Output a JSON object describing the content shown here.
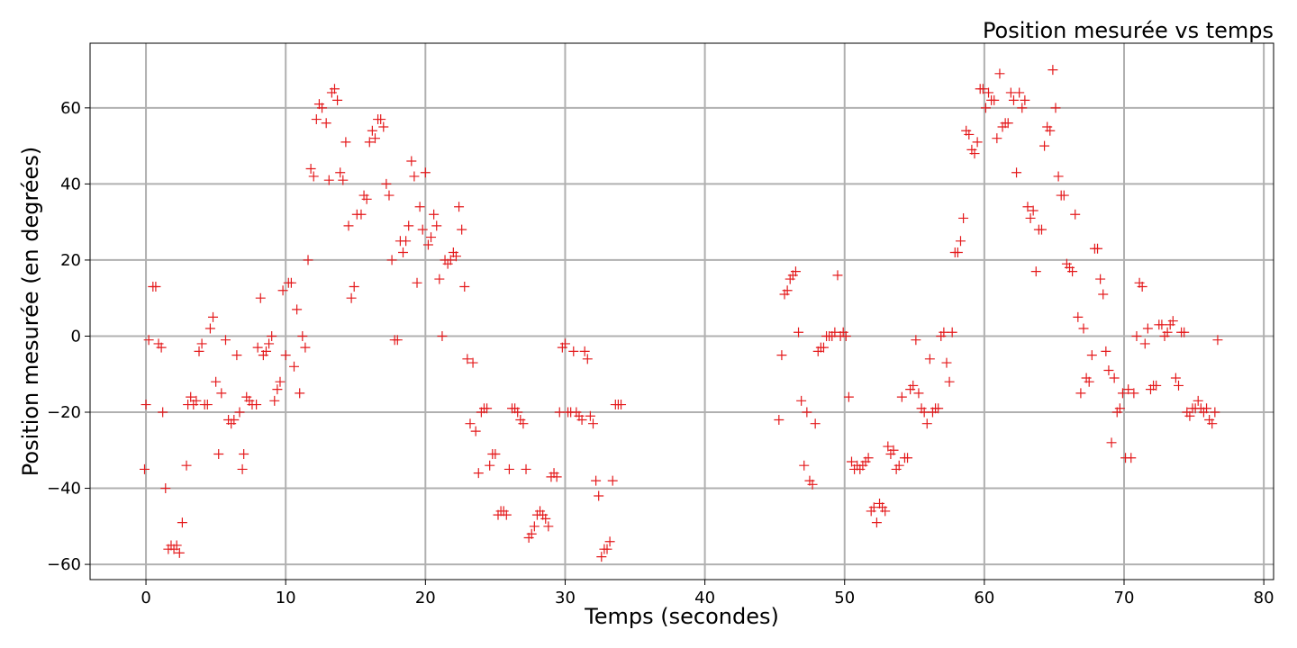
{
  "chart_data": {
    "type": "scatter",
    "title": "Position mesurée vs temps",
    "xlabel": "Temps (secondes)",
    "ylabel": "Position mesurée (en degrées)",
    "xlim": [
      -4,
      80.7
    ],
    "ylim": [
      -64,
      77
    ],
    "xticks": [
      0,
      10,
      20,
      30,
      40,
      50,
      60,
      70,
      80
    ],
    "yticks": [
      -60,
      -40,
      -20,
      0,
      20,
      40,
      60
    ],
    "grid": true,
    "marker": "+",
    "color": "#e41a1c",
    "series": [
      {
        "points": [
          [
            -0.1,
            -35
          ],
          [
            0.0,
            -18
          ],
          [
            0.2,
            -1
          ],
          [
            0.5,
            13
          ],
          [
            0.7,
            13
          ],
          [
            0.9,
            -2
          ],
          [
            1.1,
            -3
          ],
          [
            1.2,
            -20
          ],
          [
            1.4,
            -40
          ],
          [
            1.6,
            -56
          ],
          [
            1.8,
            -55
          ],
          [
            2.0,
            -56
          ],
          [
            2.2,
            -55
          ],
          [
            2.4,
            -57
          ],
          [
            2.6,
            -49
          ],
          [
            2.9,
            -34
          ],
          [
            3.0,
            -18
          ],
          [
            3.2,
            -16
          ],
          [
            3.4,
            -18
          ],
          [
            3.6,
            -17
          ],
          [
            3.8,
            -4
          ],
          [
            4.0,
            -2
          ],
          [
            4.2,
            -18
          ],
          [
            4.4,
            -18
          ],
          [
            4.6,
            2
          ],
          [
            4.8,
            5
          ],
          [
            5.0,
            -12
          ],
          [
            5.2,
            -31
          ],
          [
            5.4,
            -15
          ],
          [
            5.7,
            -1
          ],
          [
            5.9,
            -22
          ],
          [
            6.1,
            -23
          ],
          [
            6.3,
            -22
          ],
          [
            6.5,
            -5
          ],
          [
            6.7,
            -20
          ],
          [
            6.9,
            -35
          ],
          [
            7.0,
            -31
          ],
          [
            7.2,
            -16
          ],
          [
            7.4,
            -17
          ],
          [
            7.6,
            -18
          ],
          [
            7.9,
            -18
          ],
          [
            8.0,
            -3
          ],
          [
            8.2,
            10
          ],
          [
            8.4,
            -5
          ],
          [
            8.6,
            -4
          ],
          [
            8.8,
            -2
          ],
          [
            9.0,
            0
          ],
          [
            9.2,
            -17
          ],
          [
            9.4,
            -14
          ],
          [
            9.6,
            -12
          ],
          [
            9.8,
            12
          ],
          [
            10.0,
            -5
          ],
          [
            10.2,
            14
          ],
          [
            10.4,
            14
          ],
          [
            10.6,
            -8
          ],
          [
            10.8,
            7
          ],
          [
            11.0,
            -15
          ],
          [
            11.2,
            0
          ],
          [
            11.4,
            -3
          ],
          [
            11.6,
            20
          ],
          [
            11.8,
            44
          ],
          [
            12.0,
            42
          ],
          [
            12.2,
            57
          ],
          [
            12.4,
            61
          ],
          [
            12.6,
            60
          ],
          [
            12.9,
            56
          ],
          [
            13.1,
            41
          ],
          [
            13.3,
            64
          ],
          [
            13.5,
            65
          ],
          [
            13.7,
            62
          ],
          [
            13.9,
            43
          ],
          [
            14.1,
            41
          ],
          [
            14.3,
            51
          ],
          [
            14.5,
            29
          ],
          [
            14.7,
            10
          ],
          [
            14.9,
            13
          ],
          [
            15.1,
            32
          ],
          [
            15.4,
            32
          ],
          [
            15.6,
            37
          ],
          [
            15.8,
            36
          ],
          [
            16.0,
            51
          ],
          [
            16.2,
            54
          ],
          [
            16.4,
            52
          ],
          [
            16.6,
            57
          ],
          [
            16.8,
            57
          ],
          [
            17.0,
            55
          ],
          [
            17.2,
            40
          ],
          [
            17.4,
            37
          ],
          [
            17.6,
            20
          ],
          [
            17.8,
            -1
          ],
          [
            18.0,
            -1
          ],
          [
            18.2,
            25
          ],
          [
            18.4,
            22
          ],
          [
            18.6,
            25
          ],
          [
            18.8,
            29
          ],
          [
            19.0,
            46
          ],
          [
            19.2,
            42
          ],
          [
            19.4,
            14
          ],
          [
            19.6,
            34
          ],
          [
            19.8,
            28
          ],
          [
            20.0,
            43
          ],
          [
            20.2,
            24
          ],
          [
            20.4,
            26
          ],
          [
            20.6,
            32
          ],
          [
            20.8,
            29
          ],
          [
            21.0,
            15
          ],
          [
            21.2,
            0
          ],
          [
            21.4,
            20
          ],
          [
            21.6,
            19
          ],
          [
            21.8,
            20
          ],
          [
            22.0,
            22
          ],
          [
            22.2,
            21
          ],
          [
            22.4,
            34
          ],
          [
            22.6,
            28
          ],
          [
            22.8,
            13
          ],
          [
            23.0,
            -6
          ],
          [
            23.2,
            -23
          ],
          [
            23.4,
            -7
          ],
          [
            23.6,
            -25
          ],
          [
            23.8,
            -36
          ],
          [
            24.0,
            -20
          ],
          [
            24.2,
            -19
          ],
          [
            24.4,
            -19
          ],
          [
            24.6,
            -34
          ],
          [
            24.8,
            -31
          ],
          [
            25.0,
            -31
          ],
          [
            25.2,
            -47
          ],
          [
            25.4,
            -46
          ],
          [
            25.6,
            -46
          ],
          [
            25.8,
            -47
          ],
          [
            26.0,
            -35
          ],
          [
            26.2,
            -19
          ],
          [
            26.4,
            -19
          ],
          [
            26.6,
            -20
          ],
          [
            26.8,
            -22
          ],
          [
            27.0,
            -23
          ],
          [
            27.2,
            -35
          ],
          [
            27.4,
            -53
          ],
          [
            27.6,
            -52
          ],
          [
            27.8,
            -50
          ],
          [
            28.0,
            -47
          ],
          [
            28.2,
            -46
          ],
          [
            28.4,
            -47
          ],
          [
            28.6,
            -48
          ],
          [
            28.8,
            -50
          ],
          [
            29.0,
            -37
          ],
          [
            29.2,
            -36
          ],
          [
            29.4,
            -37
          ],
          [
            29.6,
            -20
          ],
          [
            29.8,
            -3
          ],
          [
            30.0,
            -2
          ],
          [
            30.2,
            -20
          ],
          [
            30.4,
            -20
          ],
          [
            30.6,
            -4
          ],
          [
            30.8,
            -20
          ],
          [
            31.0,
            -21
          ],
          [
            31.2,
            -22
          ],
          [
            31.4,
            -4
          ],
          [
            31.6,
            -6
          ],
          [
            31.8,
            -21
          ],
          [
            32.0,
            -23
          ],
          [
            32.2,
            -38
          ],
          [
            32.4,
            -42
          ],
          [
            32.6,
            -58
          ],
          [
            32.8,
            -56
          ],
          [
            33.0,
            -56
          ],
          [
            33.2,
            -54
          ],
          [
            33.4,
            -38
          ],
          [
            33.6,
            -18
          ],
          [
            33.8,
            -18
          ],
          [
            34.0,
            -18
          ],
          [
            45.3,
            -22
          ],
          [
            45.5,
            -5
          ],
          [
            45.7,
            11
          ],
          [
            45.9,
            12
          ],
          [
            46.1,
            15
          ],
          [
            46.3,
            16
          ],
          [
            46.5,
            17
          ],
          [
            46.7,
            1
          ],
          [
            46.9,
            -17
          ],
          [
            47.1,
            -34
          ],
          [
            47.3,
            -20
          ],
          [
            47.5,
            -38
          ],
          [
            47.7,
            -39
          ],
          [
            47.9,
            -23
          ],
          [
            48.1,
            -4
          ],
          [
            48.3,
            -3
          ],
          [
            48.5,
            -3
          ],
          [
            48.7,
            0
          ],
          [
            48.9,
            0
          ],
          [
            49.1,
            0
          ],
          [
            49.3,
            1
          ],
          [
            49.5,
            16
          ],
          [
            49.7,
            0
          ],
          [
            49.9,
            1
          ],
          [
            50.1,
            0
          ],
          [
            50.3,
            -16
          ],
          [
            50.5,
            -33
          ],
          [
            50.7,
            -35
          ],
          [
            50.9,
            -34
          ],
          [
            51.1,
            -35
          ],
          [
            51.3,
            -34
          ],
          [
            51.5,
            -33
          ],
          [
            51.7,
            -32
          ],
          [
            51.9,
            -46
          ],
          [
            52.1,
            -45
          ],
          [
            52.3,
            -49
          ],
          [
            52.5,
            -44
          ],
          [
            52.7,
            -45
          ],
          [
            52.9,
            -46
          ],
          [
            53.1,
            -29
          ],
          [
            53.3,
            -31
          ],
          [
            53.5,
            -30
          ],
          [
            53.7,
            -35
          ],
          [
            53.9,
            -34
          ],
          [
            54.1,
            -16
          ],
          [
            54.3,
            -32
          ],
          [
            54.5,
            -32
          ],
          [
            54.7,
            -14
          ],
          [
            54.9,
            -13
          ],
          [
            55.1,
            -1
          ],
          [
            55.3,
            -15
          ],
          [
            55.5,
            -19
          ],
          [
            55.7,
            -20
          ],
          [
            55.9,
            -23
          ],
          [
            56.1,
            -6
          ],
          [
            56.3,
            -20
          ],
          [
            56.5,
            -19
          ],
          [
            56.7,
            -19
          ],
          [
            56.9,
            0
          ],
          [
            57.1,
            1
          ],
          [
            57.3,
            -7
          ],
          [
            57.5,
            -12
          ],
          [
            57.7,
            1
          ],
          [
            57.9,
            22
          ],
          [
            58.1,
            22
          ],
          [
            58.3,
            25
          ],
          [
            58.5,
            31
          ],
          [
            58.7,
            54
          ],
          [
            58.9,
            53
          ],
          [
            59.1,
            49
          ],
          [
            59.3,
            48
          ],
          [
            59.5,
            51
          ],
          [
            59.7,
            65
          ],
          [
            59.9,
            65
          ],
          [
            60.1,
            60
          ],
          [
            60.3,
            64
          ],
          [
            60.5,
            62
          ],
          [
            60.7,
            62
          ],
          [
            60.9,
            52
          ],
          [
            61.1,
            69
          ],
          [
            61.3,
            55
          ],
          [
            61.5,
            56
          ],
          [
            61.7,
            56
          ],
          [
            61.9,
            64
          ],
          [
            62.1,
            62
          ],
          [
            62.3,
            43
          ],
          [
            62.5,
            64
          ],
          [
            62.7,
            60
          ],
          [
            62.9,
            62
          ],
          [
            63.1,
            34
          ],
          [
            63.3,
            31
          ],
          [
            63.5,
            33
          ],
          [
            63.7,
            17
          ],
          [
            63.9,
            28
          ],
          [
            64.1,
            28
          ],
          [
            64.3,
            50
          ],
          [
            64.5,
            55
          ],
          [
            64.7,
            54
          ],
          [
            64.9,
            70
          ],
          [
            65.1,
            60
          ],
          [
            65.3,
            42
          ],
          [
            65.5,
            37
          ],
          [
            65.7,
            37
          ],
          [
            65.9,
            19
          ],
          [
            66.1,
            18
          ],
          [
            66.3,
            17
          ],
          [
            66.5,
            32
          ],
          [
            66.7,
            5
          ],
          [
            66.9,
            -15
          ],
          [
            67.1,
            2
          ],
          [
            67.3,
            -11
          ],
          [
            67.5,
            -12
          ],
          [
            67.7,
            -5
          ],
          [
            67.9,
            23
          ],
          [
            68.1,
            23
          ],
          [
            68.3,
            15
          ],
          [
            68.5,
            11
          ],
          [
            68.7,
            -4
          ],
          [
            68.9,
            -9
          ],
          [
            69.1,
            -28
          ],
          [
            69.3,
            -11
          ],
          [
            69.5,
            -20
          ],
          [
            69.7,
            -19
          ],
          [
            69.9,
            -15
          ],
          [
            70.1,
            -32
          ],
          [
            70.3,
            -14
          ],
          [
            70.5,
            -32
          ],
          [
            70.7,
            -15
          ],
          [
            70.9,
            0
          ],
          [
            71.1,
            14
          ],
          [
            71.3,
            13
          ],
          [
            71.5,
            -2
          ],
          [
            71.7,
            2
          ],
          [
            71.9,
            -14
          ],
          [
            72.1,
            -13
          ],
          [
            72.3,
            -13
          ],
          [
            72.5,
            3
          ],
          [
            72.7,
            3
          ],
          [
            72.9,
            0
          ],
          [
            73.1,
            1
          ],
          [
            73.3,
            3
          ],
          [
            73.5,
            4
          ],
          [
            73.7,
            -11
          ],
          [
            73.9,
            -13
          ],
          [
            74.1,
            1
          ],
          [
            74.3,
            1
          ],
          [
            74.5,
            -20
          ],
          [
            74.7,
            -21
          ],
          [
            74.9,
            -19
          ],
          [
            75.1,
            -19
          ],
          [
            75.3,
            -17
          ],
          [
            75.5,
            -19
          ],
          [
            75.7,
            -20
          ],
          [
            75.9,
            -19
          ],
          [
            76.1,
            -22
          ],
          [
            76.3,
            -23
          ],
          [
            76.5,
            -20
          ],
          [
            76.7,
            -1
          ]
        ]
      }
    ]
  }
}
